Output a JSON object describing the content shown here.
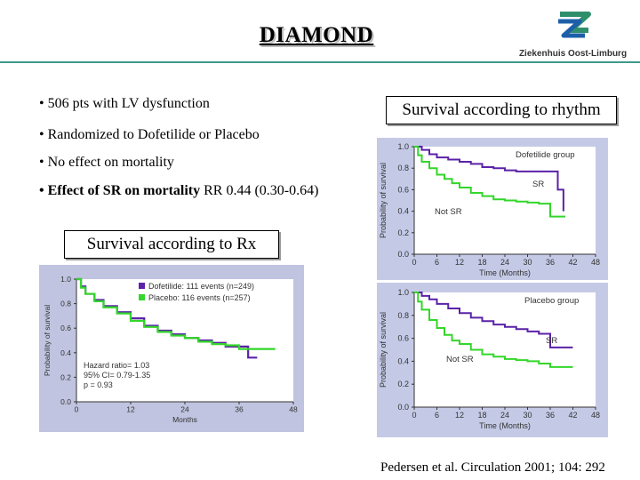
{
  "slide": {
    "title": "DIAMOND",
    "logo_text": "Ziekenhuis Oost-Limburg",
    "bullets": [
      {
        "text": "• 506 pts with LV dysfunction"
      },
      {
        "text": "• Randomized to Dofetilide or Placebo"
      },
      {
        "text": "• No effect on mortality"
      },
      {
        "bold": "• Effect of SR on mortality",
        "rest": " RR 0.44 (0.30-0.64)"
      }
    ],
    "label_rhythm": "Survival according to rhythm",
    "label_rx": "Survival according to Rx",
    "citation": "Pedersen et al. Circulation 2001; 104: 292"
  },
  "colors": {
    "purple": "#5b22a8",
    "green": "#33d62a",
    "panel_bg_rx": "#c0c4e0",
    "panel_bg_rhythm": "#c4cae6",
    "rule": "#3e9a8c"
  },
  "chart_data": [
    {
      "type": "line",
      "ylabel": "Probability of survival",
      "xlabel": "Months",
      "xlim": [
        0,
        48
      ],
      "ylim": [
        0.0,
        1.0
      ],
      "xticks": [
        0,
        12,
        24,
        36,
        48
      ],
      "yticks": [
        "0.0",
        "0.2",
        "0.4",
        "0.6",
        "0.8",
        "1.0"
      ],
      "legend": [
        "Dofetilide: 111 events (n=249)",
        "Placebo: 116 events (n=257)"
      ],
      "annotation": [
        "Hazard ratio= 1.03",
        "95% CI= 0.79-1.35",
        "p = 0.93"
      ],
      "series": [
        {
          "name": "Dofetilide: 111 events (n=249)",
          "color": "#5b22a8",
          "x": [
            0,
            1,
            2,
            4,
            6,
            9,
            12,
            15,
            18,
            21,
            24,
            27,
            30,
            33,
            36,
            38,
            40
          ],
          "y": [
            1.0,
            0.94,
            0.88,
            0.83,
            0.78,
            0.73,
            0.68,
            0.62,
            0.58,
            0.55,
            0.52,
            0.5,
            0.48,
            0.45,
            0.45,
            0.36,
            0.36
          ]
        },
        {
          "name": "Placebo: 116 events (n=257)",
          "color": "#33d62a",
          "x": [
            0,
            1,
            2,
            4,
            6,
            9,
            12,
            15,
            18,
            21,
            24,
            27,
            30,
            33,
            36,
            38,
            44
          ],
          "y": [
            1.0,
            0.93,
            0.88,
            0.82,
            0.77,
            0.72,
            0.66,
            0.61,
            0.57,
            0.54,
            0.52,
            0.49,
            0.47,
            0.46,
            0.43,
            0.43,
            0.43
          ]
        }
      ]
    },
    {
      "type": "line",
      "ylabel": "Probability of survival",
      "xlabel": "Time (Months)",
      "xlim": [
        0,
        48
      ],
      "ylim": [
        0.0,
        1.0
      ],
      "xticks": [
        0,
        6,
        12,
        18,
        24,
        30,
        36,
        42,
        48
      ],
      "yticks": [
        "0.0",
        "0.2",
        "0.4",
        "0.6",
        "0.8",
        "1.0"
      ],
      "group_label": "Dofetilide group",
      "series": [
        {
          "name": "SR",
          "color": "#5b22a8",
          "x": [
            0,
            2,
            4,
            6,
            9,
            12,
            15,
            18,
            21,
            24,
            27,
            30,
            33,
            36,
            38,
            39.5
          ],
          "y": [
            1.0,
            0.97,
            0.93,
            0.9,
            0.88,
            0.86,
            0.84,
            0.81,
            0.8,
            0.78,
            0.77,
            0.77,
            0.77,
            0.77,
            0.6,
            0.4
          ]
        },
        {
          "name": "Not SR",
          "color": "#33d62a",
          "x": [
            0,
            1,
            2,
            4,
            6,
            8,
            10,
            12,
            15,
            18,
            21,
            24,
            27,
            30,
            33,
            36,
            40
          ],
          "y": [
            1.0,
            0.92,
            0.86,
            0.8,
            0.74,
            0.7,
            0.66,
            0.62,
            0.57,
            0.54,
            0.51,
            0.5,
            0.49,
            0.48,
            0.47,
            0.35,
            0.35
          ]
        }
      ]
    },
    {
      "type": "line",
      "ylabel": "Probability of survival",
      "xlabel": "Time (Months)",
      "xlim": [
        0,
        48
      ],
      "ylim": [
        0.0,
        1.0
      ],
      "xticks": [
        0,
        6,
        12,
        18,
        24,
        30,
        36,
        42,
        48
      ],
      "yticks": [
        "0.0",
        "0.2",
        "0.4",
        "0.6",
        "0.8",
        "1.0"
      ],
      "group_label": "Placebo group",
      "series": [
        {
          "name": "SR",
          "color": "#5b22a8",
          "x": [
            0,
            2,
            4,
            6,
            9,
            12,
            15,
            18,
            21,
            24,
            27,
            30,
            33,
            36,
            37,
            42
          ],
          "y": [
            1.0,
            0.97,
            0.94,
            0.9,
            0.86,
            0.82,
            0.78,
            0.75,
            0.72,
            0.7,
            0.68,
            0.66,
            0.64,
            0.52,
            0.52,
            0.52
          ]
        },
        {
          "name": "Not SR",
          "color": "#33d62a",
          "x": [
            0,
            1,
            2,
            4,
            6,
            8,
            10,
            12,
            15,
            18,
            21,
            24,
            27,
            30,
            33,
            36,
            38,
            42
          ],
          "y": [
            1.0,
            0.92,
            0.85,
            0.76,
            0.69,
            0.63,
            0.58,
            0.55,
            0.5,
            0.46,
            0.44,
            0.42,
            0.41,
            0.4,
            0.38,
            0.35,
            0.35,
            0.35
          ]
        }
      ]
    }
  ]
}
